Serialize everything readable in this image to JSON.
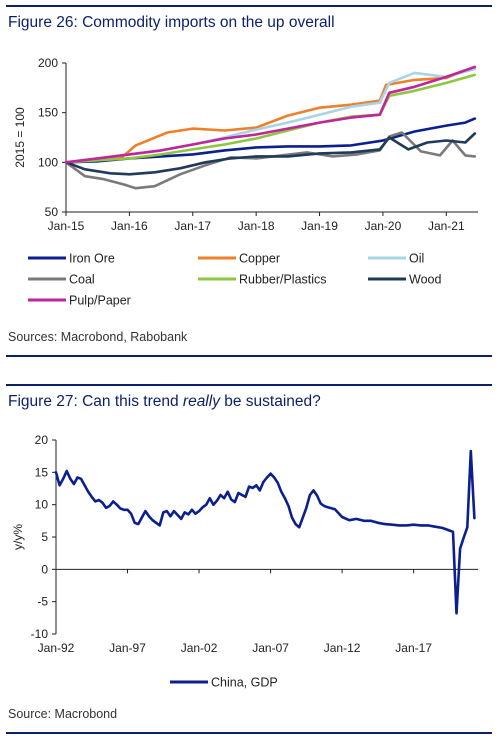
{
  "fig26": {
    "title": "Figure 26: Commodity imports on the up overall",
    "source": "Sources: Macrobond, Rabobank"
  },
  "fig27": {
    "title_pre": "Figure 27: Can this trend ",
    "title_em": "really",
    "title_post": " be sustained?",
    "source": "Source: Macrobond"
  },
  "chart_data": [
    {
      "type": "line",
      "title": "Figure 26: Commodity imports on the up overall",
      "ylabel": "2015 = 100",
      "xlabel": "",
      "ylim": [
        50,
        200
      ],
      "yticks": [
        50,
        100,
        150,
        200
      ],
      "xlim": [
        2015.0,
        2021.5
      ],
      "xticks": [
        {
          "x": 2015.0,
          "label": "Jan-15"
        },
        {
          "x": 2016.0,
          "label": "Jan-16"
        },
        {
          "x": 2017.0,
          "label": "Jan-17"
        },
        {
          "x": 2018.0,
          "label": "Jan-18"
        },
        {
          "x": 2019.0,
          "label": "Jan-19"
        },
        {
          "x": 2020.0,
          "label": "Jan-20"
        },
        {
          "x": 2021.0,
          "label": "Jan-21"
        }
      ],
      "grid": false,
      "legend": "bottom",
      "series": [
        {
          "name": "Iron Ore",
          "color": "#0b1f8f",
          "x": [
            2015.0,
            2015.5,
            2016.0,
            2016.5,
            2017.0,
            2017.5,
            2018.0,
            2018.5,
            2019.0,
            2019.5,
            2020.0,
            2020.5,
            2021.0,
            2021.3,
            2021.45
          ],
          "y": [
            100,
            101,
            104,
            106,
            108,
            112,
            115,
            116,
            116,
            117,
            122,
            131,
            137,
            140,
            144
          ]
        },
        {
          "name": "Copper",
          "color": "#f07f2a",
          "x": [
            2015.0,
            2015.5,
            2015.9,
            2016.1,
            2016.6,
            2017.0,
            2017.5,
            2018.0,
            2018.5,
            2019.0,
            2019.5,
            2019.95,
            2020.05,
            2020.5,
            2021.0,
            2021.45
          ],
          "y": [
            100,
            103,
            106,
            117,
            130,
            134,
            132,
            135,
            147,
            155,
            158,
            162,
            178,
            183,
            185,
            196
          ]
        },
        {
          "name": "Oil",
          "color": "#a8d4e6",
          "x": [
            2015.0,
            2015.5,
            2016.0,
            2016.5,
            2017.0,
            2017.5,
            2018.0,
            2018.5,
            2019.0,
            2019.5,
            2019.95,
            2020.1,
            2020.5,
            2021.0,
            2021.45
          ],
          "y": [
            100,
            104,
            108,
            112,
            118,
            125,
            133,
            140,
            148,
            156,
            160,
            180,
            190,
            186,
            194
          ]
        },
        {
          "name": "Coal",
          "color": "#7a7a7a",
          "x": [
            2015.0,
            2015.3,
            2015.6,
            2015.9,
            2016.1,
            2016.4,
            2016.8,
            2017.2,
            2017.6,
            2018.0,
            2018.4,
            2018.8,
            2019.2,
            2019.6,
            2019.95,
            2020.1,
            2020.3,
            2020.6,
            2020.9,
            2021.1,
            2021.3,
            2021.45
          ],
          "y": [
            100,
            86,
            83,
            78,
            74,
            76,
            88,
            97,
            105,
            104,
            107,
            110,
            106,
            108,
            112,
            126,
            130,
            111,
            107,
            122,
            107,
            106
          ]
        },
        {
          "name": "Rubber/Plastics",
          "color": "#8dc63f",
          "x": [
            2015.0,
            2015.5,
            2016.0,
            2016.5,
            2017.0,
            2017.5,
            2018.0,
            2018.5,
            2019.0,
            2019.5,
            2019.95,
            2020.1,
            2020.5,
            2021.0,
            2021.45
          ],
          "y": [
            100,
            102,
            104,
            108,
            113,
            118,
            124,
            132,
            140,
            146,
            148,
            167,
            172,
            180,
            188
          ]
        },
        {
          "name": "Wood",
          "color": "#1f3a5a",
          "x": [
            2015.0,
            2015.3,
            2015.7,
            2016.0,
            2016.4,
            2016.8,
            2017.2,
            2017.6,
            2018.0,
            2018.5,
            2019.0,
            2019.5,
            2019.95,
            2020.1,
            2020.4,
            2020.7,
            2021.0,
            2021.3,
            2021.45
          ],
          "y": [
            100,
            93,
            89,
            88,
            90,
            94,
            100,
            104,
            106,
            106,
            109,
            110,
            113,
            125,
            113,
            120,
            122,
            120,
            129
          ]
        },
        {
          "name": "Pulp/Paper",
          "color": "#c0259a",
          "x": [
            2015.0,
            2015.5,
            2016.0,
            2016.5,
            2017.0,
            2017.5,
            2018.0,
            2018.5,
            2019.0,
            2019.5,
            2019.95,
            2020.1,
            2020.5,
            2021.0,
            2021.45
          ],
          "y": [
            100,
            104,
            108,
            112,
            118,
            124,
            128,
            134,
            140,
            145,
            148,
            170,
            176,
            186,
            196
          ]
        }
      ]
    },
    {
      "type": "line",
      "title": "Figure 27: Can this trend really be sustained?",
      "ylabel": "y/y%",
      "xlabel": "",
      "ylim": [
        -10,
        20
      ],
      "yticks": [
        -10,
        -5,
        0,
        5,
        10,
        15,
        20
      ],
      "xlim": [
        1992.0,
        2021.5
      ],
      "xticks": [
        {
          "x": 1992.0,
          "label": "Jan-92"
        },
        {
          "x": 1997.0,
          "label": "Jan-97"
        },
        {
          "x": 2002.0,
          "label": "Jan-02"
        },
        {
          "x": 2007.0,
          "label": "Jan-07"
        },
        {
          "x": 2012.0,
          "label": "Jan-12"
        },
        {
          "x": 2017.0,
          "label": "Jan-17"
        }
      ],
      "grid": false,
      "legend": "bottom",
      "series": [
        {
          "name": "China, GDP",
          "color": "#0b1f8f",
          "x": [
            1992.0,
            1992.25,
            1992.5,
            1992.75,
            1993.0,
            1993.25,
            1993.5,
            1993.75,
            1994.0,
            1994.25,
            1994.5,
            1994.75,
            1995.0,
            1995.25,
            1995.5,
            1995.75,
            1996.0,
            1996.25,
            1996.5,
            1996.75,
            1997.0,
            1997.25,
            1997.5,
            1997.75,
            1998.0,
            1998.25,
            1998.5,
            1998.75,
            1999.0,
            1999.25,
            1999.5,
            1999.75,
            2000.0,
            2000.25,
            2000.5,
            2000.75,
            2001.0,
            2001.25,
            2001.5,
            2001.75,
            2002.0,
            2002.25,
            2002.5,
            2002.75,
            2003.0,
            2003.25,
            2003.5,
            2003.75,
            2004.0,
            2004.25,
            2004.5,
            2004.75,
            2005.0,
            2005.25,
            2005.5,
            2005.75,
            2006.0,
            2006.25,
            2006.5,
            2006.75,
            2007.0,
            2007.25,
            2007.5,
            2007.75,
            2008.0,
            2008.25,
            2008.5,
            2008.75,
            2009.0,
            2009.25,
            2009.5,
            2009.75,
            2010.0,
            2010.25,
            2010.5,
            2010.75,
            2011.0,
            2011.5,
            2012.0,
            2012.5,
            2013.0,
            2013.5,
            2014.0,
            2014.5,
            2015.0,
            2015.5,
            2016.0,
            2016.5,
            2017.0,
            2017.5,
            2018.0,
            2018.5,
            2019.0,
            2019.5,
            2019.75,
            2020.0,
            2020.25,
            2020.5,
            2020.75,
            2021.0,
            2021.25
          ],
          "y": [
            15,
            13,
            14,
            15.2,
            14,
            13.2,
            14.2,
            14,
            13,
            12,
            11.2,
            10.5,
            10.7,
            10.3,
            9.5,
            9.8,
            10.5,
            10,
            9.4,
            9.2,
            9.2,
            8.6,
            7.2,
            7,
            8,
            9,
            8.2,
            7.6,
            7.2,
            6.8,
            8.8,
            9,
            8.2,
            9,
            8.4,
            7.8,
            8.8,
            8.5,
            9.2,
            8.6,
            9,
            9.6,
            10,
            11,
            10,
            10.6,
            11.5,
            11,
            12,
            10.8,
            10.4,
            11.8,
            11.5,
            11.2,
            12.8,
            12.6,
            13,
            12.2,
            13.5,
            14.2,
            14.8,
            14.2,
            13.4,
            12,
            11,
            9.8,
            8,
            7,
            6.5,
            8,
            9.5,
            11.5,
            12.2,
            11.4,
            10.2,
            9.8,
            9.6,
            9.3,
            8.1,
            7.6,
            7.8,
            7.5,
            7.5,
            7.2,
            7,
            6.9,
            6.8,
            6.8,
            6.9,
            6.8,
            6.8,
            6.6,
            6.4,
            6,
            5.8,
            -6.8,
            3.2,
            4.9,
            6.5,
            18.3,
            7.9
          ]
        }
      ]
    }
  ]
}
